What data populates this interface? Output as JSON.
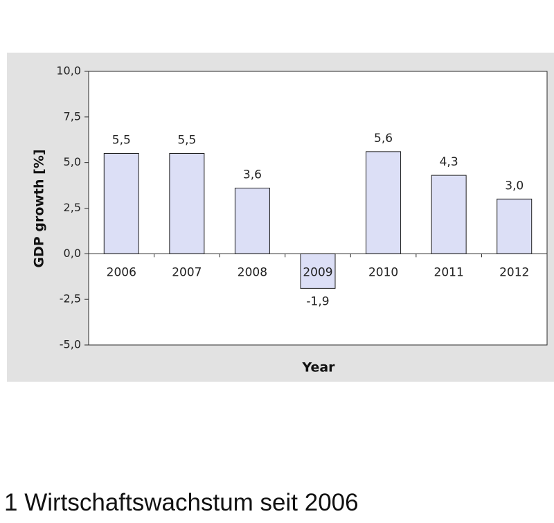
{
  "chart_data": {
    "type": "bar",
    "categories": [
      "2006",
      "2007",
      "2008",
      "2009",
      "2010",
      "2011",
      "2012"
    ],
    "values": [
      5.5,
      5.5,
      3.6,
      -1.9,
      5.6,
      4.3,
      3.0
    ],
    "data_labels": [
      "5,5",
      "5,5",
      "3,6",
      "-1,9",
      "5,6",
      "4,3",
      "3,0"
    ],
    "ylim": [
      -5.0,
      10.0
    ],
    "yticks": [
      10.0,
      7.5,
      5.0,
      2.5,
      0.0,
      -2.5,
      -5.0
    ],
    "ytick_labels": [
      "10,0",
      "7,5",
      "5,0",
      "2,5",
      "0,0",
      "-2,5",
      "-5,0"
    ],
    "xlabel": "Year",
    "ylabel": "GDP growth [%]",
    "grid": false,
    "legend": "none",
    "colors": {
      "bar_fill": "#dcdff6",
      "bar_stroke": "#1e1e1e",
      "panel_background": "#e2e2e2",
      "plot_background": "#ffffff"
    }
  },
  "caption": "1 Wirtschaftswachstum seit 2006"
}
